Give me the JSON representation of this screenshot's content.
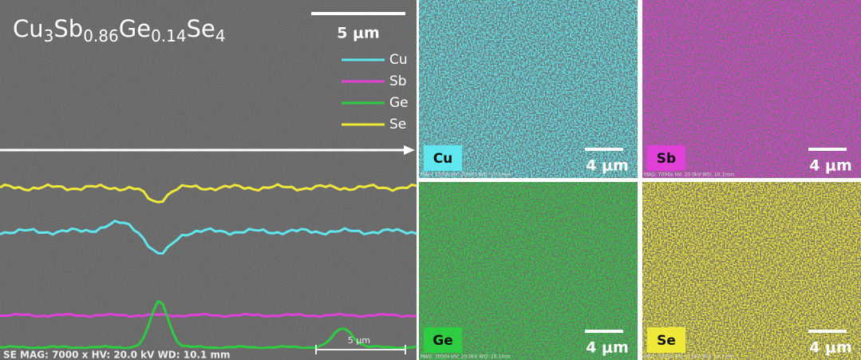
{
  "formula": [
    {
      "element": "Cu",
      "subscript": "3"
    },
    {
      "element": "Sb",
      "subscript": "0.86"
    },
    {
      "element": "Ge",
      "subscript": "0.14"
    },
    {
      "element": "Se",
      "subscript": "4"
    }
  ],
  "scale_bar": "5 μm",
  "legend": [
    {
      "name": "Cu",
      "color": "#5fe6ee"
    },
    {
      "name": "Sb",
      "color": "#e040d8"
    },
    {
      "name": "Ge",
      "color": "#2ecc40"
    },
    {
      "name": "Se",
      "color": "#f0e838"
    }
  ],
  "footer": {
    "info": "SE  MAG: 7000 x  HV: 20.0 kV  WD: 10.1 mm",
    "scale": "5 μm"
  },
  "panels": [
    {
      "element": "Cu",
      "scale": "4 μm",
      "info": "MAG: 7000x  HV: 20.0kV  WD: 10.1mm"
    },
    {
      "element": "Sb",
      "scale": "4 μm",
      "info": "MAG: 7000x  HV: 20.0kV  WD: 10.1mm"
    },
    {
      "element": "Ge",
      "scale": "4 μm",
      "info": "MAG: 7000x  HV: 20.0kV  WD: 10.1mm"
    },
    {
      "element": "Se",
      "scale": "4 μm",
      "info": "MAG: 7000x  HV: 20.0kV  WD: 10.1mm"
    }
  ]
}
